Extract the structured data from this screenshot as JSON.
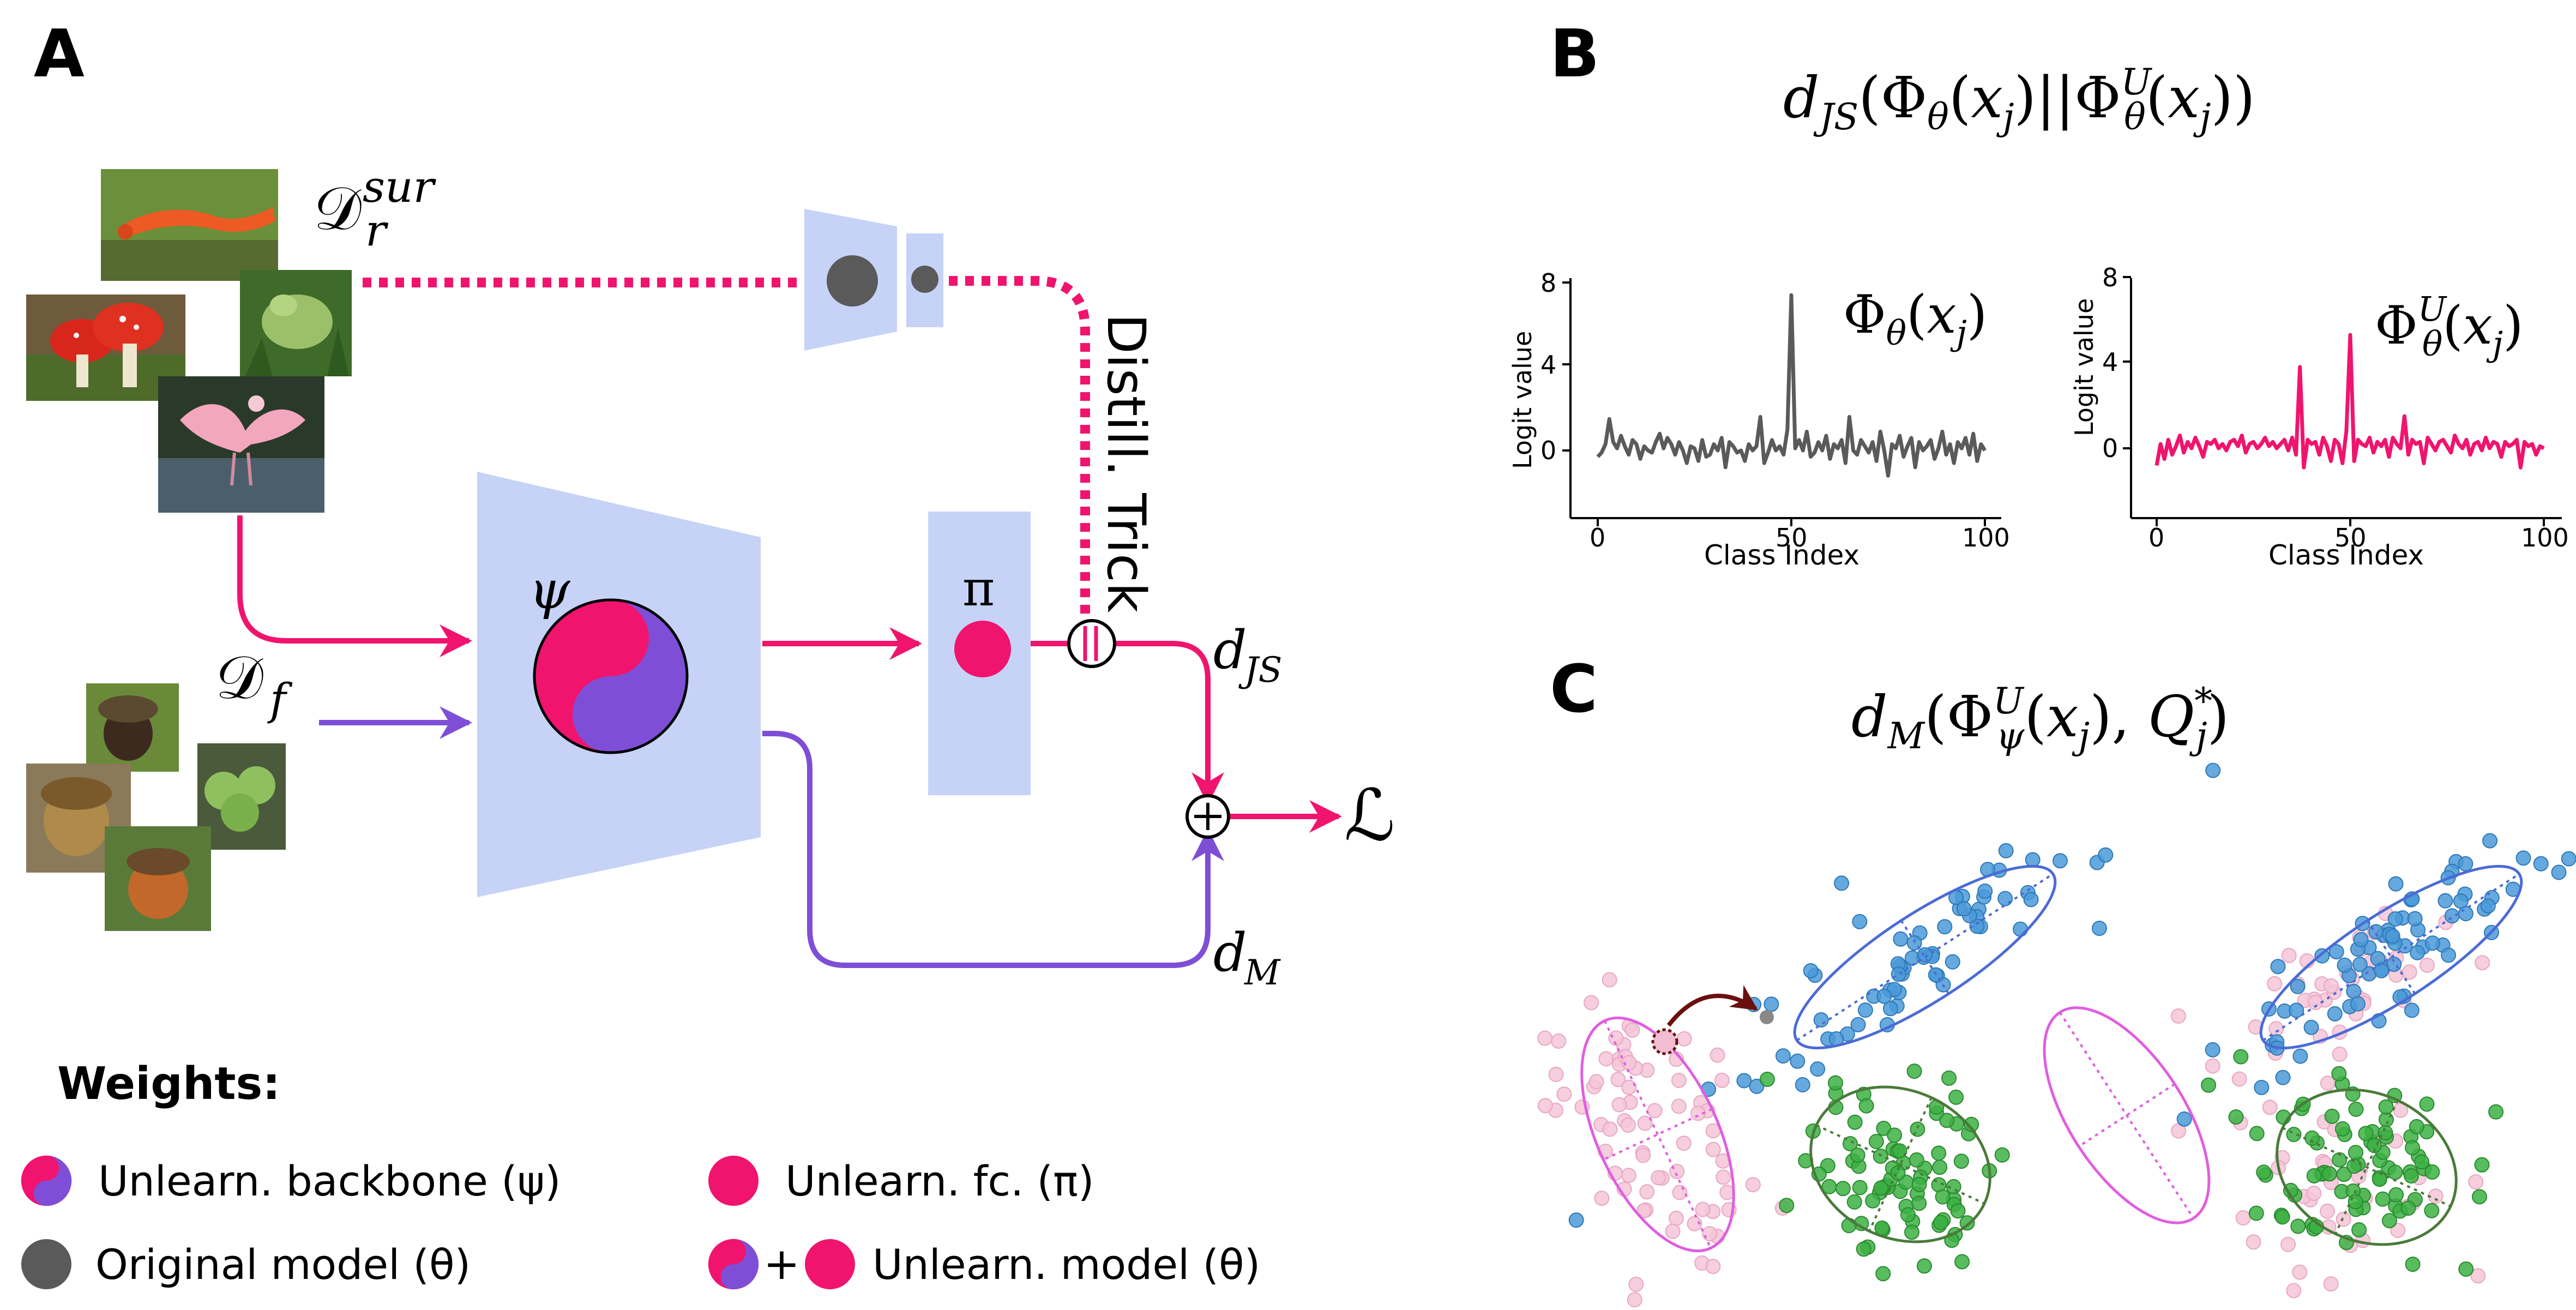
{
  "panels": {
    "a": "A",
    "b": "B",
    "c": "C"
  },
  "colors": {
    "pink": "#f0146e",
    "purple": "#7e4fd6",
    "gray": "#5a5a5a",
    "light_blue": "#c6d3f7",
    "blue": "#3f8fd6",
    "green": "#3cb043",
    "light_pink": "#f2bdd3",
    "magenta": "#e05ee0"
  },
  "panel_a": {
    "dataset_retain": {
      "base": "𝒟",
      "sup": "sur",
      "sub": "r"
    },
    "dataset_forget": {
      "base": "𝒟",
      "sub": "f"
    },
    "backbone_symbol": "ψ",
    "fc_symbol": "π",
    "distill_label": "Distill. Trick",
    "d_js": {
      "base": "d",
      "sub": "JS"
    },
    "d_m": {
      "base": "d",
      "sub": "M"
    },
    "loss": "ℒ",
    "plus": "⊕"
  },
  "legend": {
    "title": "Weights:",
    "items": [
      {
        "icon": "yin-yang-icon",
        "text": "Unlearn. backbone (ψ)"
      },
      {
        "icon": "pink-circle-icon",
        "text": "Unlearn. fc. (π)"
      },
      {
        "icon": "gray-circle-icon",
        "text": "Original model (θ)"
      },
      {
        "icon": "yin-yang-plus-pink-icon",
        "plus": "+",
        "text": "Unlearn. model (θ)"
      }
    ]
  },
  "panel_b": {
    "title": "d_JS(Φ_θ(x_j)||Φ^U_θ(x_j))"
  },
  "panel_c": {
    "title": "d_M(Φ^U_ψ(x_j), Q*_j)"
  },
  "chart_data": [
    {
      "type": "line",
      "series_label": "Φθ(xj)",
      "color": "#5a5a5a",
      "xlabel": "Class Index",
      "ylabel": "Logit value",
      "xlim": [
        0,
        100
      ],
      "ylim": [
        -1.3,
        8
      ],
      "xticks": [
        "0",
        "50",
        "100"
      ],
      "yticks": [
        "0",
        "4",
        "8"
      ],
      "x": [
        0,
        1,
        2,
        3,
        4,
        5,
        6,
        7,
        8,
        9,
        10,
        11,
        12,
        13,
        14,
        15,
        16,
        17,
        18,
        19,
        20,
        21,
        22,
        23,
        24,
        25,
        26,
        27,
        28,
        29,
        30,
        31,
        32,
        33,
        34,
        35,
        36,
        37,
        38,
        39,
        40,
        41,
        42,
        43,
        44,
        45,
        46,
        47,
        48,
        49,
        50,
        51,
        52,
        53,
        54,
        55,
        56,
        57,
        58,
        59,
        60,
        61,
        62,
        63,
        64,
        65,
        66,
        67,
        68,
        69,
        70,
        71,
        72,
        73,
        74,
        75,
        76,
        77,
        78,
        79,
        80,
        81,
        82,
        83,
        84,
        85,
        86,
        87,
        88,
        89,
        90,
        91,
        92,
        93,
        94,
        95,
        96,
        97,
        98,
        99,
        100
      ],
      "values": [
        -0.3,
        -0.1,
        0.3,
        1.5,
        0.4,
        0.1,
        0.7,
        0.2,
        -0.2,
        0.5,
        0.3,
        -0.4,
        0.2,
        0.0,
        -0.1,
        0.4,
        0.8,
        0.1,
        0.6,
        0.3,
        -0.2,
        0.4,
        0.0,
        -0.6,
        0.2,
        0.1,
        -0.5,
        0.5,
        -0.3,
        -0.2,
        0.3,
        0.0,
        0.6,
        -0.8,
        0.4,
        0.2,
        -0.1,
        0.0,
        -0.5,
        0.3,
        0.0,
        0.2,
        1.6,
        -0.6,
        -0.1,
        0.5,
        0.0,
        0.2,
        -0.2,
        1.0,
        7.4,
        0.1,
        0.5,
        0.0,
        0.9,
        -0.3,
        -0.1,
        0.4,
        0.0,
        0.7,
        -0.4,
        0.3,
        0.1,
        0.5,
        -0.6,
        1.6,
        0.0,
        -0.2,
        0.5,
        0.2,
        -0.1,
        0.4,
        -0.5,
        0.9,
        0.0,
        -1.2,
        0.3,
        0.1,
        0.7,
        -0.3,
        0.2,
        0.6,
        -0.8,
        0.4,
        0.0,
        0.2,
        0.5,
        -0.4,
        0.1,
        0.9,
        -0.2,
        0.3,
        -0.6,
        0.4,
        0.1,
        0.6,
        -0.2,
        0.8,
        -0.5,
        0.3,
        0.0
      ]
    },
    {
      "type": "line",
      "series_label": "ΦUθ(xj)",
      "color": "#f0146e",
      "xlabel": "Class Index",
      "ylabel": "Logit value",
      "xlim": [
        0,
        100
      ],
      "ylim": [
        -1.3,
        8
      ],
      "xticks": [
        "0",
        "50",
        "100"
      ],
      "yticks": [
        "0",
        "4",
        "8"
      ],
      "x": [
        0,
        1,
        2,
        3,
        4,
        5,
        6,
        7,
        8,
        9,
        10,
        11,
        12,
        13,
        14,
        15,
        16,
        17,
        18,
        19,
        20,
        21,
        22,
        23,
        24,
        25,
        26,
        27,
        28,
        29,
        30,
        31,
        32,
        33,
        34,
        35,
        36,
        37,
        38,
        39,
        40,
        41,
        42,
        43,
        44,
        45,
        46,
        47,
        48,
        49,
        50,
        51,
        52,
        53,
        54,
        55,
        56,
        57,
        58,
        59,
        60,
        61,
        62,
        63,
        64,
        65,
        66,
        67,
        68,
        69,
        70,
        71,
        72,
        73,
        74,
        75,
        76,
        77,
        78,
        79,
        80,
        81,
        82,
        83,
        84,
        85,
        86,
        87,
        88,
        89,
        90,
        91,
        92,
        93,
        94,
        95,
        96,
        97,
        98,
        99,
        100
      ],
      "values": [
        -0.8,
        0.2,
        -0.5,
        0.4,
        -0.3,
        0.1,
        0.6,
        -0.2,
        0.3,
        0.0,
        0.5,
        0.1,
        -0.4,
        0.3,
        0.2,
        0.4,
        0.0,
        0.2,
        -0.1,
        0.3,
        0.4,
        0.1,
        0.6,
        -0.2,
        0.2,
        0.3,
        0.0,
        0.2,
        0.5,
        0.1,
        0.3,
        0.0,
        0.2,
        0.4,
        -0.1,
        0.5,
        -0.3,
        3.8,
        -0.9,
        0.4,
        0.2,
        0.3,
        -0.3,
        0.5,
        0.1,
        -0.6,
        0.4,
        0.2,
        -0.7,
        0.8,
        5.3,
        -0.6,
        0.4,
        0.2,
        0.1,
        0.5,
        -0.2,
        0.3,
        0.1,
        0.4,
        -0.4,
        0.5,
        0.2,
        0.0,
        1.5,
        -0.3,
        0.4,
        0.2,
        0.3,
        -0.7,
        0.5,
        0.2,
        -0.1,
        0.3,
        0.4,
        0.1,
        -0.2,
        0.6,
        0.2,
        0.0,
        0.4,
        -0.3,
        0.2,
        0.3,
        -0.1,
        0.5,
        0.0,
        0.3,
        0.2,
        -0.4,
        0.3,
        0.1,
        0.2,
        0.4,
        -0.9,
        0.3,
        0.1,
        0.2,
        -0.3,
        0.1,
        0.0
      ]
    }
  ]
}
